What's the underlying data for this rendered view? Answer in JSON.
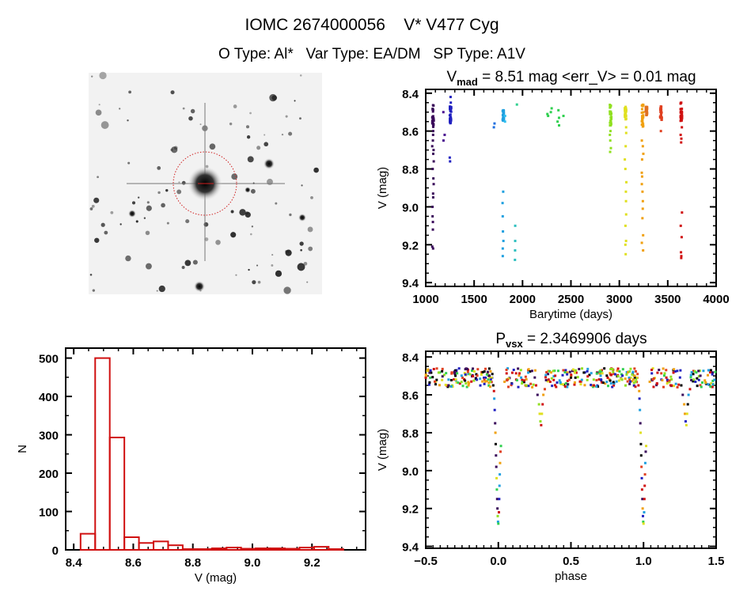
{
  "header": {
    "title": "IOMC 2674000056    V* V477 Cyg",
    "subtitle": "O Type: Al*   Var Type: EA/DM   SP Type: A1V"
  },
  "colors": {
    "axis": "#000000",
    "histogram": "#d01010",
    "image_marker": "#d02020"
  },
  "image_panel": {
    "description_icon": "sky-image",
    "target_circle": true
  },
  "chart_data": [
    {
      "type": "scatter",
      "title_main": "V",
      "title_sub": "mad",
      "title_rest": " = 8.51 mag <err_V> = 0.01 mag",
      "xlabel": "Barytime (days)",
      "ylabel": "V (mag)",
      "xlim": [
        1000,
        4000
      ],
      "ylim": [
        9.42,
        8.38
      ],
      "y_inverted": true,
      "xticks": [
        "1000",
        "1500",
        "2000",
        "2500",
        "3000",
        "3500",
        "4000"
      ],
      "yticks": [
        "8.4",
        "8.6",
        "8.8",
        "9.0",
        "9.2",
        "9.4"
      ],
      "groups": [
        {
          "t": 1075,
          "color": "#3a0a5a",
          "core": [
            8.46,
            8.58
          ],
          "mags": [
            8.6,
            8.62,
            8.65,
            8.68,
            8.7,
            8.72,
            8.76,
            8.8,
            8.85,
            8.88,
            8.93,
            8.95,
            9.0,
            9.05,
            9.08,
            9.12,
            9.21,
            9.22
          ]
        },
        {
          "t": 1190,
          "color": "#4a1090",
          "mags": [
            8.5,
            8.62,
            8.65
          ]
        },
        {
          "t": 1255,
          "color": "#2020c0",
          "core": [
            8.47,
            8.56
          ],
          "mags": [
            8.42,
            8.45,
            8.74,
            8.76
          ]
        },
        {
          "t": 1710,
          "color": "#2070e0",
          "mags": [
            8.56,
            8.58
          ]
        },
        {
          "t": 1800,
          "color": "#20a0e0",
          "core": [
            8.49,
            8.55
          ],
          "mags": [
            8.92,
            8.98,
            9.05,
            9.13,
            9.18,
            9.22,
            9.26
          ]
        },
        {
          "t": 1820,
          "color": "#30c0f0",
          "mags": [
            8.52,
            8.55
          ]
        },
        {
          "t": 1920,
          "color": "#30c0c0",
          "mags": [
            9.1,
            9.18,
            9.23,
            9.28
          ]
        },
        {
          "t": 1950,
          "color": "#30d090",
          "mags": [
            8.46
          ]
        },
        {
          "t": 2260,
          "color": "#30d050",
          "mags": [
            8.51,
            8.52
          ]
        },
        {
          "t": 2300,
          "color": "#30d050",
          "mags": [
            8.48,
            8.5
          ]
        },
        {
          "t": 2370,
          "color": "#30d050",
          "mags": [
            8.49,
            8.53,
            8.55,
            8.57
          ]
        },
        {
          "t": 2420,
          "color": "#30d050",
          "mags": [
            8.52
          ]
        },
        {
          "t": 2910,
          "color": "#90e020",
          "core": [
            8.46,
            8.58
          ],
          "mags": [
            8.6,
            8.62,
            8.65,
            8.69,
            8.71
          ]
        },
        {
          "t": 3065,
          "color": "#e0e020",
          "core": [
            8.47,
            8.54
          ],
          "mags": [
            8.58,
            8.61,
            8.68,
            8.75,
            8.8,
            8.87,
            8.92,
            8.97,
            9.04,
            9.1,
            9.18,
            9.2,
            9.25
          ]
        },
        {
          "t": 3240,
          "color": "#f0a010",
          "core": [
            8.46,
            8.58
          ],
          "mags": [
            8.65,
            8.68,
            8.72,
            8.75,
            8.82,
            8.84,
            8.88,
            8.92,
            8.97,
            9.01,
            9.06,
            9.15,
            9.19,
            9.23
          ]
        },
        {
          "t": 3280,
          "color": "#e07020",
          "core": [
            8.47,
            8.52
          ],
          "mags": []
        },
        {
          "t": 3430,
          "color": "#e04020",
          "core": [
            8.47,
            8.55
          ],
          "mags": [
            8.6
          ]
        },
        {
          "t": 3640,
          "color": "#d01010",
          "core": [
            8.45,
            8.55
          ],
          "mags": [
            8.58,
            8.62,
            8.64,
            8.66,
            9.03,
            9.1,
            9.16,
            9.24,
            9.26,
            9.27
          ]
        }
      ]
    },
    {
      "type": "bar",
      "title": "",
      "xlabel": "V (mag)",
      "ylabel": "N",
      "xlim": [
        8.373,
        9.38
      ],
      "ylim": [
        0,
        526
      ],
      "xticks": [
        "8.4",
        "8.6",
        "8.8",
        "9.0",
        "9.2"
      ],
      "yticks": [
        "0",
        "100",
        "200",
        "300",
        "400",
        "500"
      ],
      "bin_start": 8.423,
      "bin_width": 0.049,
      "values": [
        42,
        500,
        293,
        33,
        18,
        22,
        12,
        2,
        2,
        4,
        6,
        3,
        4,
        4,
        3,
        6,
        8,
        2
      ]
    },
    {
      "type": "scatter",
      "title_main": "P",
      "title_sub": "vsx",
      "title_rest": " = 2.3469906 days",
      "xlabel": "phase",
      "ylabel": "V (mag)",
      "xlim": [
        -0.5,
        1.5
      ],
      "ylim": [
        9.41,
        8.37
      ],
      "y_inverted": true,
      "xticks": [
        "-0.5",
        "0.0",
        "0.5",
        "1.0",
        "1.5"
      ],
      "yticks": [
        "8.4",
        "8.6",
        "8.8",
        "9.0",
        "9.2",
        "9.4"
      ],
      "baseline": [
        8.46,
        8.56
      ],
      "palette": [
        "#3a0a5a",
        "#2020c0",
        "#20a0e0",
        "#30d050",
        "#90e020",
        "#e0e020",
        "#f0a010",
        "#e04020",
        "#d01010",
        "#000000"
      ],
      "eclipse_points": [
        [
          -0.035,
          8.55
        ],
        [
          -0.03,
          8.58
        ],
        [
          -0.028,
          8.62
        ],
        [
          -0.025,
          8.68
        ],
        [
          -0.022,
          8.75
        ],
        [
          -0.02,
          8.8
        ],
        [
          -0.018,
          8.86
        ],
        [
          -0.016,
          8.92
        ],
        [
          -0.014,
          8.98
        ],
        [
          -0.012,
          9.04
        ],
        [
          -0.01,
          9.1
        ],
        [
          -0.008,
          9.15
        ],
        [
          -0.006,
          9.2
        ],
        [
          -0.004,
          9.24
        ],
        [
          -0.002,
          9.27
        ],
        [
          0.0,
          9.28
        ],
        [
          0.004,
          9.22
        ],
        [
          0.006,
          9.15
        ],
        [
          0.008,
          9.08
        ],
        [
          0.01,
          9.02
        ],
        [
          0.012,
          8.96
        ],
        [
          0.015,
          8.9
        ],
        [
          0.018,
          8.87
        ],
        [
          0.26,
          8.55
        ],
        [
          0.27,
          8.6
        ],
        [
          0.28,
          8.65
        ],
        [
          0.285,
          8.7
        ],
        [
          0.29,
          8.74
        ],
        [
          0.295,
          8.76
        ],
        [
          0.3,
          8.7
        ],
        [
          0.305,
          8.65
        ],
        [
          0.31,
          8.6
        ],
        [
          0.32,
          8.57
        ]
      ]
    }
  ]
}
